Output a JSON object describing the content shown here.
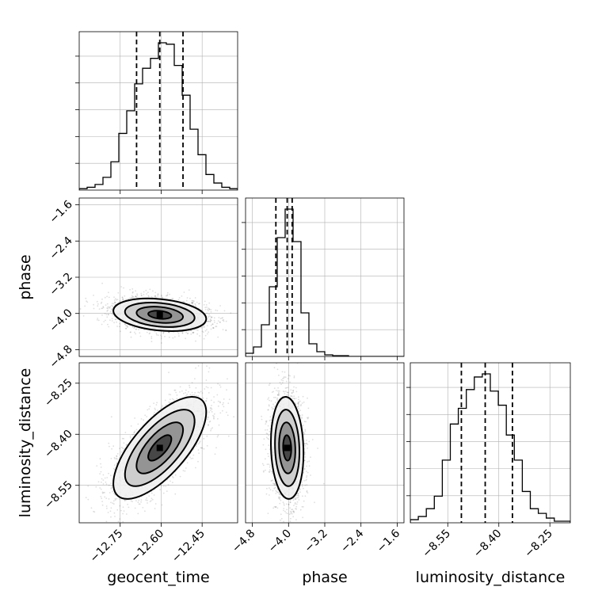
{
  "chart_data": {
    "type": "corner",
    "parameters": [
      "geocent_time",
      "phase",
      "luminosity_distance"
    ],
    "axes_labels": {
      "geocent_time": "geocent_time",
      "phase": "phase",
      "luminosity_distance": "luminosity_distance"
    },
    "ranges": {
      "geocent_time": [
        -12.9,
        -12.32
      ],
      "phase": [
        -4.95,
        -1.45
      ],
      "luminosity_distance": [
        -8.66,
        -8.19
      ]
    },
    "ticks": {
      "geocent_time": [
        -12.75,
        -12.6,
        -12.45
      ],
      "phase": [
        -4.8,
        -4.0,
        -3.2,
        -2.4,
        -1.6
      ],
      "luminosity_distance": [
        -8.55,
        -8.4,
        -8.25
      ]
    },
    "tick_labels": {
      "geocent_time": [
        "−12.75",
        "−12.60",
        "−12.45"
      ],
      "phase": [
        "−4.8",
        "−4.0",
        "−3.2",
        "−2.4",
        "−1.6"
      ],
      "luminosity_distance": [
        "−8.55",
        "−8.40",
        "−8.25"
      ]
    },
    "quantiles": {
      "geocent_time": [
        -12.69,
        -12.605,
        -12.52
      ],
      "phase": [
        -4.28,
        -4.03,
        -3.92
      ],
      "luminosity_distance": [
        -8.51,
        -8.44,
        -8.36
      ]
    },
    "histograms": {
      "geocent_time": {
        "bin_start": -12.9,
        "bin_width": 0.029,
        "counts": [
          1,
          2,
          4,
          9,
          20,
          40,
          56,
          75,
          86,
          93,
          104,
          103,
          88,
          67,
          43,
          25,
          11,
          5,
          2,
          1
        ]
      },
      "phase": {
        "bin_start": -4.95,
        "bin_width": 0.175,
        "counts": [
          4,
          12,
          40,
          88,
          150,
          186,
          145,
          55,
          16,
          6,
          2,
          1,
          1,
          0,
          0,
          0,
          0,
          0,
          0,
          0
        ]
      },
      "luminosity_distance": {
        "bin_start": -8.66,
        "bin_width": 0.0235,
        "counts": [
          2,
          4,
          9,
          17,
          40,
          63,
          73,
          85,
          93,
          95,
          84,
          75,
          56,
          40,
          20,
          9,
          6,
          3,
          1,
          1
        ]
      }
    },
    "grid": true,
    "colors": {
      "contour": "#000000",
      "hist": "#000000",
      "samples": "#000000",
      "grid": "#b0b0b0"
    }
  }
}
